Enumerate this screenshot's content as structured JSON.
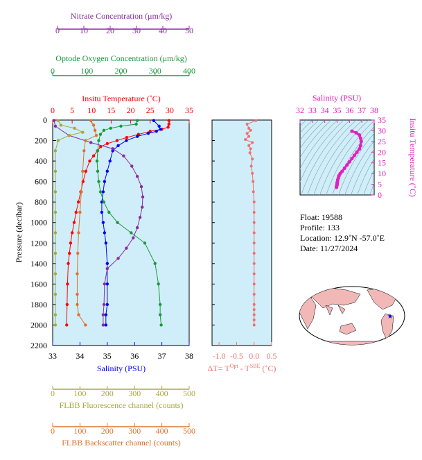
{
  "colors": {
    "plot_bg": "#cfeef9",
    "temperature": "#ff0000",
    "salinity": "#0000ff",
    "oxygen": "#1a9a3a",
    "nitrate": "#8a2ba0",
    "fluorescence": "#a8a83a",
    "backscatter": "#e0712a",
    "delta": "#f07070",
    "ts_magenta": "#e020c0",
    "map_land": "#f2b8b8",
    "map_ocean": "#ffffff",
    "float_marker": "#0000ff"
  },
  "axes": {
    "nitrate": {
      "label": "Nitrate Concentration (μm/kg)",
      "ticks": [
        "0",
        "10",
        "20",
        "30",
        "40",
        "50"
      ],
      "range": [
        0,
        50
      ]
    },
    "oxygen": {
      "label": "Optode Oxygen Concentration (μm/kg)",
      "ticks": [
        "0",
        "100",
        "200",
        "300",
        "400"
      ],
      "range": [
        0,
        400
      ]
    },
    "temperature": {
      "label": "Insitu Temperature (˚C)",
      "ticks": [
        "0",
        "5",
        "10",
        "15",
        "20",
        "25",
        "30",
        "35"
      ],
      "range": [
        0,
        35
      ]
    },
    "salinity": {
      "label": "Salinity (PSU)",
      "ticks": [
        "33",
        "34",
        "35",
        "36",
        "37",
        "38"
      ],
      "range": [
        33,
        38
      ]
    },
    "pressure": {
      "label": "Pressure (decibar)",
      "ticks": [
        "0",
        "200",
        "400",
        "600",
        "800",
        "1000",
        "1200",
        "1400",
        "1600",
        "1800",
        "2000",
        "2200"
      ],
      "range": [
        0,
        2200
      ]
    },
    "fluorescence": {
      "label": "FLBB Fluorescence channel (counts)",
      "ticks": [
        "0",
        "100",
        "200",
        "300",
        "400",
        "500"
      ],
      "range": [
        0,
        500
      ]
    },
    "backscatter": {
      "label": "FLBB Backscatter channel (counts)",
      "ticks": [
        "0",
        "100",
        "200",
        "300",
        "400",
        "500"
      ],
      "range": [
        0,
        500
      ]
    },
    "delta": {
      "label_prefix": "ΔT= T",
      "label_sup1": "Opt",
      "label_mid": " - T",
      "label_sup2": "SBE",
      "label_suffix": " (˚C)",
      "ticks": [
        "-1.0",
        "-0.5",
        "0.0",
        "0.5"
      ],
      "range": [
        -1.2,
        0.5
      ]
    },
    "ts_salinity": {
      "label": "Salinity (PSU)",
      "ticks": [
        "32",
        "33",
        "34",
        "35",
        "36",
        "37",
        "38"
      ],
      "range": [
        32,
        38
      ]
    },
    "ts_temperature": {
      "label": "Insitu Temperature (˚C)",
      "ticks": [
        "0",
        "5",
        "10",
        "15",
        "20",
        "25",
        "30",
        "35"
      ],
      "range": [
        0,
        35
      ]
    }
  },
  "info": {
    "float": "Float:  19588",
    "profile": "Profile:  133",
    "location": "Location:  12.9˚N  -57.0˚E",
    "date": "Date:  11/27/2024"
  },
  "chart_data": [
    {
      "type": "line",
      "panel": "profile",
      "series": [
        {
          "name": "Insitu Temperature",
          "axis": "temperature",
          "color_key": "temperature",
          "x": [
            29.8,
            29.8,
            29.6,
            28.0,
            25.0,
            22.0,
            19.0,
            16.5,
            14.0,
            12.3,
            11.5,
            10.5,
            9.5,
            8.5,
            7.8,
            7.2,
            6.6,
            6.0,
            5.5,
            5.0,
            4.6,
            4.3,
            4.0,
            3.8,
            3.7,
            3.6
          ],
          "y": [
            5,
            40,
            70,
            90,
            110,
            140,
            170,
            200,
            230,
            260,
            300,
            350,
            400,
            500,
            600,
            700,
            800,
            900,
            1000,
            1100,
            1200,
            1300,
            1400,
            1600,
            1800,
            2000
          ]
        },
        {
          "name": "Salinity",
          "axis": "salinity",
          "color_key": "salinity",
          "x": [
            36.7,
            36.9,
            36.95,
            36.8,
            36.5,
            36.1,
            35.7,
            35.4,
            35.2,
            35.1,
            35.0,
            34.9,
            34.85,
            34.8,
            34.8,
            34.85,
            34.9,
            34.95,
            35.0,
            35.0,
            35.0,
            34.95,
            34.95
          ],
          "y": [
            5,
            60,
            90,
            110,
            130,
            160,
            200,
            250,
            300,
            400,
            500,
            600,
            700,
            800,
            900,
            1000,
            1100,
            1200,
            1400,
            1600,
            1800,
            1900,
            2000
          ]
        },
        {
          "name": "Optode Oxygen",
          "axis": "oxygen",
          "color_key": "oxygen",
          "x": [
            248,
            245,
            200,
            170,
            150,
            140,
            135,
            132,
            130,
            132,
            135,
            140,
            150,
            165,
            190,
            230,
            270,
            300,
            310,
            315,
            315,
            318
          ],
          "y": [
            5,
            40,
            60,
            80,
            100,
            140,
            200,
            300,
            400,
            500,
            600,
            700,
            800,
            900,
            1000,
            1100,
            1200,
            1400,
            1600,
            1800,
            1900,
            2000
          ]
        },
        {
          "name": "Nitrate",
          "axis": "nitrate",
          "color_key": "nitrate",
          "x": [
            0.5,
            1.0,
            6.0,
            14.0,
            22.0,
            26.0,
            29.0,
            31.0,
            32.5,
            33.0,
            32.8,
            32.0,
            31.0,
            29.5,
            27.0,
            24.0,
            20.0,
            19.0,
            18.8,
            18.5,
            18.5
          ],
          "y": [
            5,
            60,
            150,
            220,
            280,
            350,
            450,
            550,
            650,
            750,
            850,
            950,
            1050,
            1150,
            1250,
            1350,
            1450,
            1600,
            1800,
            1900,
            2000
          ]
        },
        {
          "name": "FLBB Fluorescence",
          "axis": "fluorescence",
          "color_key": "fluorescence",
          "x": [
            20,
            30,
            80,
            110,
            60,
            20,
            10,
            10,
            10,
            10,
            10,
            10,
            10,
            10,
            10,
            10
          ],
          "y": [
            5,
            50,
            80,
            120,
            150,
            200,
            300,
            500,
            700,
            900,
            1100,
            1300,
            1500,
            1700,
            1900,
            2000
          ]
        },
        {
          "name": "FLBB Backscatter",
          "axis": "backscatter",
          "color_key": "backscatter",
          "x": [
            140,
            150,
            155,
            160,
            120,
            115,
            110,
            105,
            100,
            95,
            92,
            90,
            90,
            90,
            95,
            120
          ],
          "y": [
            5,
            50,
            100,
            150,
            200,
            300,
            500,
            700,
            900,
            1100,
            1300,
            1500,
            1700,
            1800,
            1900,
            2000
          ]
        }
      ]
    },
    {
      "type": "line",
      "panel": "delta",
      "series": [
        {
          "name": "Delta T",
          "axis": "delta",
          "color_key": "delta",
          "x": [
            0.05,
            -0.2,
            -0.15,
            -0.1,
            -0.2,
            -0.15,
            -0.25,
            -0.05,
            -0.15,
            -0.1,
            -0.12,
            -0.05,
            -0.08,
            -0.05,
            -0.03,
            -0.02,
            0.0,
            0.0,
            0.0,
            0.0,
            0.0,
            0.0,
            0.0,
            0.0,
            0.0,
            0.0,
            0.0,
            0.0,
            0.0,
            0.0,
            0.0
          ],
          "y": [
            5,
            40,
            80,
            100,
            130,
            160,
            190,
            220,
            250,
            280,
            320,
            380,
            450,
            520,
            600,
            700,
            800,
            900,
            1000,
            1100,
            1200,
            1300,
            1400,
            1500,
            1600,
            1700,
            1800,
            1850,
            1900,
            1950,
            2000
          ]
        }
      ]
    },
    {
      "type": "scatter",
      "panel": "ts",
      "series": [
        {
          "name": "T-S",
          "color_key": "ts_magenta",
          "x": [
            36.2,
            36.55,
            36.8,
            36.9,
            36.95,
            36.9,
            36.8,
            36.6,
            36.4,
            36.2,
            36.0,
            35.8,
            35.6,
            35.4,
            35.25,
            35.15,
            35.1,
            35.05,
            35.02,
            35.0,
            35.0,
            34.98,
            34.95,
            34.95
          ],
          "y": [
            29.8,
            29.0,
            28.0,
            26.5,
            25.0,
            23.0,
            21.5,
            20.0,
            18.5,
            17.0,
            15.5,
            14.0,
            12.5,
            11.0,
            10.0,
            9.0,
            8.0,
            7.0,
            6.0,
            5.5,
            5.0,
            4.5,
            4.0,
            3.6
          ]
        }
      ]
    }
  ]
}
